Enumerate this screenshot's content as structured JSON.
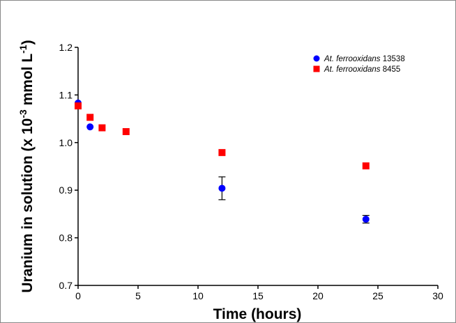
{
  "chart_data": {
    "type": "scatter",
    "xlabel": "Time (hours)",
    "ylabel": {
      "prefix": "Uranium in solution (x 10",
      "exp1": "-3",
      "middle": " mmol L",
      "exp2": "-1",
      "suffix": ")"
    },
    "xlim": [
      0,
      30
    ],
    "ylim": [
      0.7,
      1.2
    ],
    "xticks": [
      "0",
      "5",
      "10",
      "15",
      "20",
      "25",
      "30"
    ],
    "yticks": [
      "0.7",
      "0.8",
      "0.9",
      "1.0",
      "1.1",
      "1.2"
    ],
    "grid": false,
    "legend_position": "top-right",
    "series": [
      {
        "name_italic": "At. ferrooxidans",
        "name_rest": " 13538",
        "marker": "circle",
        "color": "#0000ff",
        "points": [
          {
            "x": 0,
            "y": 1.083
          },
          {
            "x": 1,
            "y": 1.033
          },
          {
            "x": 12,
            "y": 0.904,
            "err": 0.024
          },
          {
            "x": 24,
            "y": 0.839,
            "err": 0.008
          }
        ]
      },
      {
        "name_italic": "At. ferrooxidans",
        "name_rest": " 8455",
        "marker": "square",
        "color": "#ff0000",
        "points": [
          {
            "x": 0,
            "y": 1.077
          },
          {
            "x": 1,
            "y": 1.053
          },
          {
            "x": 2,
            "y": 1.031
          },
          {
            "x": 4,
            "y": 1.023
          },
          {
            "x": 12,
            "y": 0.979
          },
          {
            "x": 24,
            "y": 0.951
          }
        ]
      }
    ]
  }
}
